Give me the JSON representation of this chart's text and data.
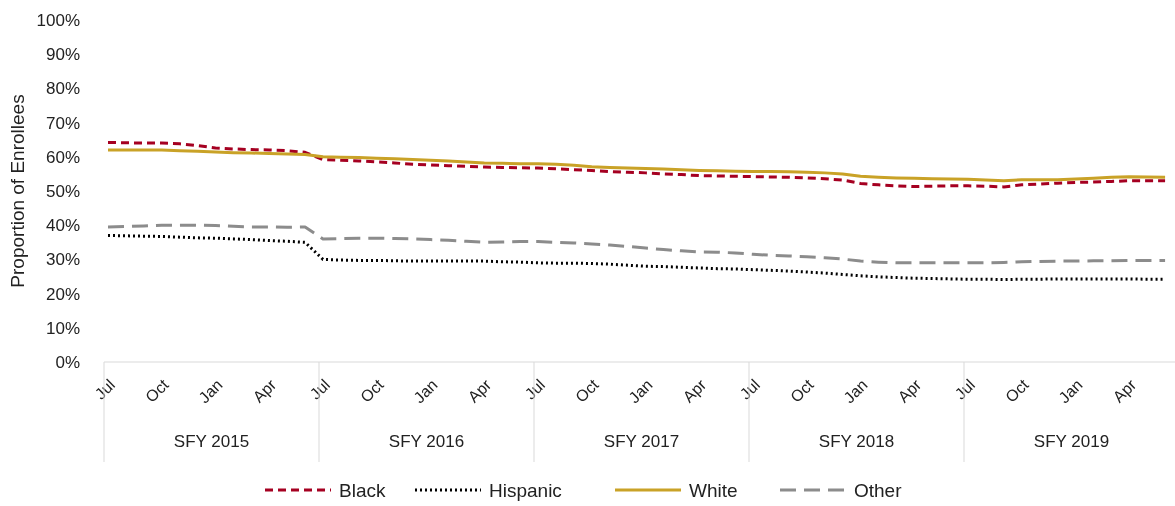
{
  "chart_data": {
    "type": "line",
    "ylabel": "Proportion of Enrollees",
    "categories": [
      "Jul",
      null,
      null,
      "Oct",
      null,
      null,
      "Jan",
      null,
      null,
      "Apr",
      null,
      null,
      "Jul",
      null,
      null,
      "Oct",
      null,
      null,
      "Jan",
      null,
      null,
      "Apr",
      null,
      null,
      "Jul",
      null,
      null,
      "Oct",
      null,
      null,
      "Jan",
      null,
      null,
      "Apr",
      null,
      null,
      "Jul",
      null,
      null,
      "Oct",
      null,
      null,
      "Jan",
      null,
      null,
      "Apr",
      null,
      null,
      "Jul",
      null,
      null,
      "Oct",
      null,
      null,
      "Jan",
      null,
      null,
      "Apr",
      null,
      null
    ],
    "annotations": [
      "SFY 2015",
      "SFY 2016",
      "SFY 2017",
      "SFY 2018",
      "SFY 2019"
    ],
    "ylim": [
      0,
      100
    ],
    "yticks": [
      {
        "value": 0,
        "label": "0%"
      },
      {
        "value": 10,
        "label": "10%"
      },
      {
        "value": 20,
        "label": "20%"
      },
      {
        "value": 30,
        "label": "30%"
      },
      {
        "value": 40,
        "label": "40%"
      },
      {
        "value": 50,
        "label": "50%"
      },
      {
        "value": 60,
        "label": "60%"
      },
      {
        "value": 70,
        "label": "70%"
      },
      {
        "value": 80,
        "label": "80%"
      },
      {
        "value": 90,
        "label": "90%"
      },
      {
        "value": 100,
        "label": "100%"
      }
    ],
    "grid": false,
    "legend": "bottom",
    "series": [
      {
        "name": "Black",
        "color": "#a50021",
        "line_style": "dashed",
        "values": [
          64.2,
          64.1,
          64.0,
          64.0,
          63.8,
          63.3,
          62.6,
          62.3,
          62.1,
          62.0,
          61.8,
          61.3,
          59.2,
          59.0,
          58.8,
          58.5,
          58.2,
          57.8,
          57.6,
          57.4,
          57.2,
          57.0,
          56.9,
          56.8,
          56.7,
          56.5,
          56.2,
          56.0,
          55.7,
          55.5,
          55.3,
          55.0,
          54.8,
          54.5,
          54.4,
          54.3,
          54.2,
          54.1,
          54.0,
          53.8,
          53.6,
          53.2,
          52.2,
          51.8,
          51.5,
          51.3,
          51.4,
          51.5,
          51.5,
          51.4,
          51.2,
          51.8,
          52.0,
          52.3,
          52.5,
          52.6,
          52.8,
          53.0,
          53.0,
          53.0
        ]
      },
      {
        "name": "Hispanic",
        "color": "#000000",
        "line_style": "dotted",
        "values": [
          37.0,
          36.9,
          36.8,
          36.7,
          36.5,
          36.3,
          36.2,
          36.0,
          35.8,
          35.5,
          35.3,
          35.0,
          30.0,
          29.8,
          29.7,
          29.7,
          29.6,
          29.5,
          29.5,
          29.5,
          29.5,
          29.5,
          29.3,
          29.2,
          29.0,
          28.9,
          28.9,
          28.8,
          28.6,
          28.3,
          28.0,
          27.9,
          27.7,
          27.5,
          27.3,
          27.2,
          27.0,
          26.8,
          26.6,
          26.3,
          26.0,
          25.6,
          25.2,
          24.9,
          24.7,
          24.5,
          24.4,
          24.3,
          24.2,
          24.2,
          24.1,
          24.2,
          24.2,
          24.3,
          24.3,
          24.3,
          24.3,
          24.3,
          24.2,
          24.2
        ]
      },
      {
        "name": "White",
        "color": "#c9a227",
        "line_style": "solid",
        "values": [
          62.0,
          62.0,
          62.0,
          62.0,
          61.8,
          61.6,
          61.4,
          61.2,
          61.1,
          61.0,
          60.8,
          60.7,
          60.0,
          59.9,
          59.8,
          59.6,
          59.4,
          59.2,
          59.0,
          58.8,
          58.5,
          58.2,
          58.1,
          58.0,
          58.0,
          57.8,
          57.5,
          57.1,
          56.9,
          56.7,
          56.6,
          56.4,
          56.2,
          56.0,
          55.9,
          55.8,
          55.7,
          55.7,
          55.6,
          55.5,
          55.3,
          55.0,
          54.3,
          54.0,
          53.8,
          53.7,
          53.6,
          53.5,
          53.4,
          53.2,
          53.0,
          53.3,
          53.3,
          53.3,
          53.5,
          53.7,
          54.0,
          54.2,
          54.1,
          54.0
        ]
      },
      {
        "name": "Other",
        "color": "#8c8c8c",
        "line_style": "longdash",
        "values": [
          39.5,
          39.6,
          39.8,
          40.0,
          40.0,
          40.0,
          39.9,
          39.7,
          39.5,
          39.5,
          39.4,
          39.5,
          36.0,
          36.1,
          36.2,
          36.2,
          36.1,
          36.0,
          35.8,
          35.6,
          35.3,
          35.0,
          35.1,
          35.2,
          35.2,
          35.0,
          34.8,
          34.5,
          34.2,
          33.8,
          33.3,
          32.9,
          32.5,
          32.2,
          32.1,
          31.9,
          31.5,
          31.2,
          31.0,
          30.8,
          30.5,
          30.1,
          29.5,
          29.2,
          29.0,
          29.0,
          29.0,
          29.0,
          29.0,
          29.0,
          29.1,
          29.3,
          29.4,
          29.5,
          29.5,
          29.6,
          29.6,
          29.7,
          29.7,
          29.7
        ]
      }
    ]
  }
}
